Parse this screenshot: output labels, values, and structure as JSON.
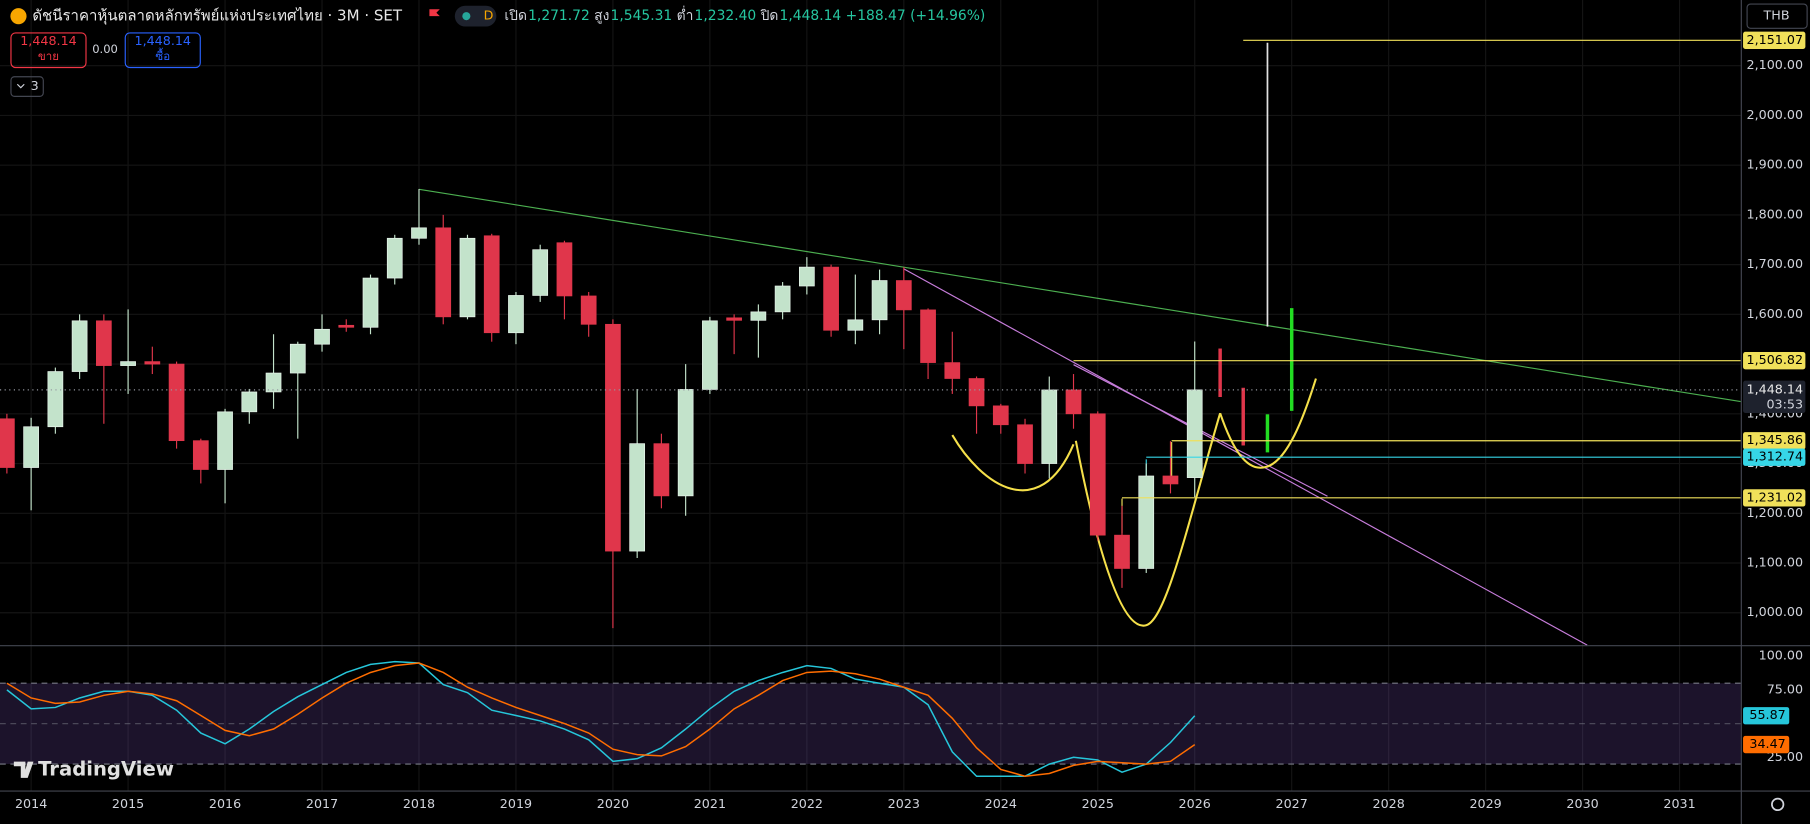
{
  "header": {
    "symbol": "ดัชนีราคาหุ้นตลาดหลักทรัพย์แห่งประเทศไทย · 3M · SET",
    "badge": "D",
    "ohlc": [
      {
        "key": "เปิด",
        "value": "1,271.72"
      },
      {
        "key": "สูง",
        "value": "1,545.31"
      },
      {
        "key": "ต่ำ",
        "value": "1,232.40"
      },
      {
        "key": "ปิด",
        "value": "1,448.14"
      }
    ],
    "change": "+188.47 (+14.96%)"
  },
  "order_panel": {
    "sell_price": "1,448.14",
    "sell_label": "ขาย",
    "spread": "0.00",
    "buy_price": "1,448.14",
    "buy_label": "ซื้อ"
  },
  "indicator_toggle": "3",
  "currency": "THB",
  "countdown": "03:53",
  "watermark": "TradingView",
  "chart_data": [
    {
      "type": "candlestick",
      "x": [
        2013.75,
        2014,
        2014.25,
        2014.5,
        2014.75,
        2015,
        2015.25,
        2015.5,
        2015.75,
        2016,
        2016.25,
        2016.5,
        2016.75,
        2017,
        2017.25,
        2017.5,
        2017.75,
        2018,
        2018.25,
        2018.5,
        2018.75,
        2019,
        2019.25,
        2019.5,
        2019.75,
        2020,
        2020.25,
        2020.5,
        2020.75,
        2021,
        2021.25,
        2021.5,
        2021.75,
        2022,
        2022.25,
        2022.5,
        2022.75,
        2023,
        2023.25,
        2023.5,
        2023.75,
        2024,
        2024.25,
        2024.5,
        2024.75,
        2025,
        2025.25,
        2025.5,
        2025.75,
        2026
      ],
      "open": [
        1390,
        1292,
        1374,
        1485,
        1587,
        1497,
        1505,
        1500,
        1346,
        1288,
        1404,
        1444,
        1482,
        1540,
        1578,
        1574,
        1673,
        1753,
        1774,
        1595,
        1758,
        1563,
        1638,
        1744,
        1637,
        1580,
        1124,
        1340,
        1235,
        1449,
        1593,
        1588,
        1605,
        1657,
        1695,
        1568,
        1589,
        1668,
        1609,
        1503,
        1471,
        1416,
        1378,
        1300,
        1448,
        1400,
        1156,
        1089,
        1275,
        1271.72
      ],
      "high": [
        1400,
        1392,
        1493,
        1600,
        1600,
        1610,
        1535,
        1505,
        1350,
        1410,
        1450,
        1560,
        1545,
        1600,
        1590,
        1680,
        1760,
        1852,
        1800,
        1760,
        1762,
        1645,
        1740,
        1748,
        1645,
        1590,
        1450,
        1360,
        1500,
        1595,
        1600,
        1620,
        1665,
        1715,
        1700,
        1680,
        1690,
        1695,
        1612,
        1565,
        1475,
        1420,
        1390,
        1475,
        1480,
        1405,
        1215,
        1300,
        1345,
        1545.31
      ],
      "low": [
        1280,
        1206,
        1360,
        1470,
        1380,
        1440,
        1480,
        1330,
        1260,
        1220,
        1380,
        1410,
        1350,
        1525,
        1565,
        1560,
        1660,
        1740,
        1580,
        1590,
        1545,
        1540,
        1625,
        1590,
        1555,
        969,
        1110,
        1210,
        1195,
        1440,
        1520,
        1513,
        1590,
        1640,
        1555,
        1540,
        1560,
        1530,
        1470,
        1440,
        1360,
        1360,
        1280,
        1270,
        1370,
        1145,
        1050,
        1080,
        1240,
        1232.4
      ],
      "close": [
        1292,
        1374,
        1485,
        1587,
        1497,
        1505,
        1500,
        1346,
        1288,
        1404,
        1444,
        1482,
        1540,
        1570,
        1574,
        1673,
        1753,
        1774,
        1595,
        1753,
        1563,
        1638,
        1730,
        1637,
        1580,
        1124,
        1340,
        1235,
        1449,
        1587,
        1588,
        1605,
        1657,
        1695,
        1568,
        1589,
        1668,
        1609,
        1503,
        1471,
        1416,
        1378,
        1300,
        1448,
        1400,
        1156,
        1089,
        1275,
        1259,
        1448.14
      ],
      "up_color": "#c3e3cb",
      "down_color": "#e0364b",
      "xlim": [
        2013.679,
        2031.631
      ],
      "xticks": [
        2014,
        2015,
        2016,
        2017,
        2018,
        2019,
        2020,
        2021,
        2022,
        2023,
        2024,
        2025,
        2026,
        2027,
        2028,
        2029,
        2030,
        2031
      ],
      "ylim": [
        934.9,
        2232.1
      ],
      "yticks": [
        {
          "value": 1000,
          "label": "1,000.00"
        },
        {
          "value": 1100,
          "label": "1,100.00"
        },
        {
          "value": 1200,
          "label": "1,200.00"
        },
        {
          "value": 1300,
          "label": "1,300.00"
        },
        {
          "value": 1400,
          "label": "1,400.00"
        },
        {
          "value": 1500,
          "label": "1,500.00"
        },
        {
          "value": 1600,
          "label": "1,600.00"
        },
        {
          "value": 1700,
          "label": "1,700.00"
        },
        {
          "value": 1800,
          "label": "1,800.00"
        },
        {
          "value": 1900,
          "label": "1,900.00"
        },
        {
          "value": 2000,
          "label": "2,000.00"
        },
        {
          "value": 2100,
          "label": "2,100.00"
        }
      ],
      "grid": true,
      "price_lines": [
        {
          "value": 2151.07,
          "label": "2,151.07",
          "color": "#f0e05a"
        },
        {
          "value": 1506.82,
          "label": "1,506.82",
          "color": "#f0e05a"
        },
        {
          "value": 1345.86,
          "label": "1,345.86",
          "color": "#f0e05a"
        },
        {
          "value": 1312.74,
          "label": "1,312.74",
          "color": "#36d6e7"
        },
        {
          "value": 1231.02,
          "label": "1,231.02",
          "color": "#f0e05a"
        }
      ],
      "last_price": {
        "value": 1448.14,
        "label": "1,448.14"
      }
    },
    {
      "type": "line",
      "x": [
        2013.75,
        2014,
        2014.25,
        2014.5,
        2014.75,
        2015,
        2015.25,
        2015.5,
        2015.75,
        2016,
        2016.25,
        2016.5,
        2016.75,
        2017,
        2017.25,
        2017.5,
        2017.75,
        2018,
        2018.25,
        2018.5,
        2018.75,
        2019,
        2019.25,
        2019.5,
        2019.75,
        2020,
        2020.25,
        2020.5,
        2020.75,
        2021,
        2021.25,
        2021.5,
        2021.75,
        2022,
        2022.25,
        2022.5,
        2022.75,
        2023,
        2023.25,
        2023.5,
        2023.75,
        2024,
        2024.25,
        2024.5,
        2024.75,
        2025,
        2025.25,
        2025.5,
        2025.75,
        2026
      ],
      "series": [
        {
          "color": "#26c6da",
          "values": [
            75,
            61,
            62,
            69,
            74,
            74,
            71,
            60,
            43,
            35,
            46,
            59,
            70,
            79,
            88,
            94,
            96,
            95,
            79,
            73,
            60,
            56,
            52,
            46,
            38,
            22,
            24,
            32,
            46,
            61,
            74,
            82,
            88,
            93,
            91,
            83,
            80,
            77,
            64,
            29,
            11,
            11,
            11,
            20,
            25,
            23,
            14,
            20,
            36,
            55.87
          ]
        },
        {
          "color": "#ff6d00",
          "values": [
            80,
            69,
            65,
            66,
            71,
            74,
            72,
            67,
            56,
            45,
            41,
            46,
            57,
            69,
            80,
            88,
            93,
            95,
            88,
            77,
            69,
            62,
            56,
            50,
            43,
            31,
            27,
            26,
            33,
            46,
            61,
            71,
            82,
            88,
            89,
            87,
            83,
            77,
            71,
            54,
            32,
            16,
            11,
            13,
            19,
            22,
            21,
            20,
            22,
            34.47
          ]
        }
      ],
      "ylim": [
        1.2,
        105.7
      ],
      "yticks": [
        {
          "value": 100,
          "label": "100.00"
        },
        {
          "value": 75,
          "label": "75.00"
        },
        {
          "value": 25,
          "label": "25.00"
        }
      ],
      "band": [
        20,
        80
      ]
    }
  ]
}
